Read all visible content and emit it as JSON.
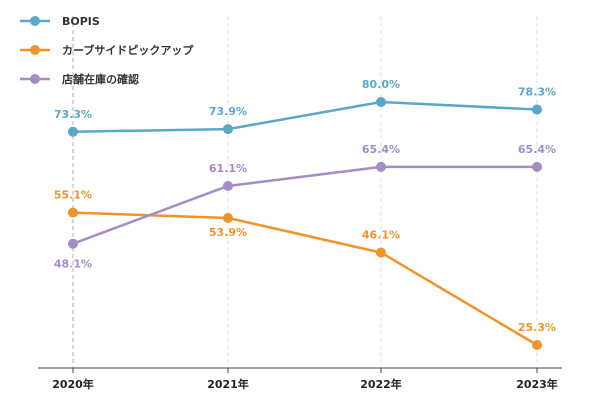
{
  "chart_data": {
    "type": "line",
    "title": "",
    "xlabel": "",
    "ylabel": "",
    "categories": [
      "2020年",
      "2021年",
      "2022年",
      "2023年"
    ],
    "ylim": [
      20,
      85
    ],
    "grid": "vertical dashed",
    "legend_position": "top-left",
    "series": [
      {
        "name": "BOPIS",
        "color": "#5aa8c8",
        "values": [
          73.3,
          73.9,
          80.0,
          78.3
        ],
        "labels": [
          "73.3%",
          "73.9%",
          "80.0%",
          "78.3%"
        ]
      },
      {
        "name": "カーブサイドピックアップ",
        "color": "#ef9428",
        "values": [
          55.1,
          53.9,
          46.1,
          25.3
        ],
        "labels": [
          "55.1%",
          "53.9%",
          "46.1%",
          "25.3%"
        ]
      },
      {
        "name": "店舗在庫の確認",
        "color": "#a48dc4",
        "values": [
          48.1,
          61.1,
          65.4,
          65.4
        ],
        "labels": [
          "48.1%",
          "61.1%",
          "65.4%",
          "65.4%"
        ]
      }
    ]
  }
}
